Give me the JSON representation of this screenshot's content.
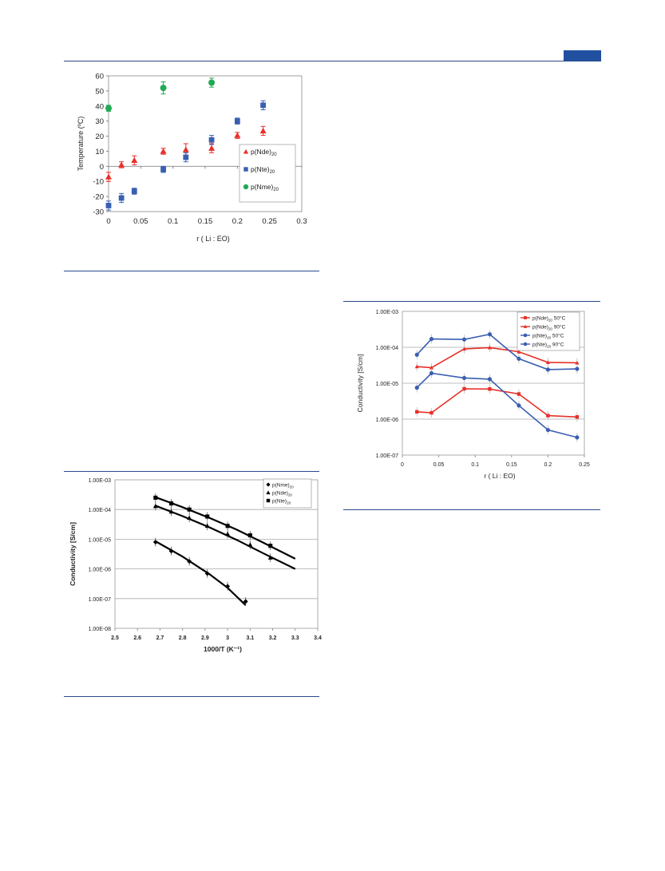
{
  "page": {
    "accent_color": "#2150a0",
    "rule_color": "#2a4a8c"
  },
  "figures": [
    {
      "chart_data": {
        "type": "scatter",
        "xlabel": "r ( Li : EO)",
        "ylabel": "Temperature (ºC)",
        "xlim": [
          0,
          0.3
        ],
        "ylim": [
          -30,
          60
        ],
        "x_ticks": [
          "0",
          "0.05",
          "0.1",
          "0.15",
          "0.2",
          "0.25",
          "0.3"
        ],
        "y_ticks": [
          "60",
          "50",
          "40",
          "30",
          "20",
          "10",
          "0",
          "-10",
          "-20",
          "-30"
        ],
        "grid": false,
        "legend_position": "right",
        "series": [
          {
            "name_main": "p(Nde)",
            "name_sub": "20",
            "marker": "triangle",
            "color": "#e8302a",
            "points": [
              [
                0,
                -7,
                3
              ],
              [
                0.02,
                1,
                2
              ],
              [
                0.04,
                4,
                3
              ],
              [
                0.085,
                10,
                2
              ],
              [
                0.12,
                11,
                4
              ],
              [
                0.16,
                12,
                3
              ],
              [
                0.2,
                20.5,
                2
              ],
              [
                0.24,
                23.5,
                3
              ]
            ]
          },
          {
            "name_main": "p(Nte)",
            "name_sub": "20",
            "marker": "square",
            "color": "#3a5fb0",
            "points": [
              [
                0,
                -26,
                3
              ],
              [
                0.02,
                -21,
                3
              ],
              [
                0.04,
                -16.5,
                2
              ],
              [
                0.085,
                -2,
                2
              ],
              [
                0.12,
                6,
                3
              ],
              [
                0.16,
                17.5,
                3
              ],
              [
                0.2,
                30,
                2
              ],
              [
                0.24,
                40.5,
                3
              ]
            ]
          },
          {
            "name_main": "p(Nme)",
            "name_sub": "20",
            "marker": "circle",
            "color": "#22aa55",
            "points": [
              [
                0,
                38.5,
                2
              ],
              [
                0.085,
                52,
                4
              ],
              [
                0.16,
                55.5,
                3
              ]
            ]
          }
        ]
      }
    },
    {
      "chart_data": {
        "type": "line",
        "xlabel": "r ( Li : EO)",
        "ylabel": "Conductivity [S/cm]",
        "xlim": [
          0,
          0.25
        ],
        "ylim_log10": [
          -7,
          -3
        ],
        "y_scale": "log",
        "x_ticks": [
          "0",
          "0.05",
          "0.1",
          "0.15",
          "0.2",
          "0.25"
        ],
        "y_ticks": [
          "1.00E-03",
          "1.00E-04",
          "1.00E-05",
          "1.00E-06",
          "1.00E-07"
        ],
        "grid": true,
        "legend_position": "top-right",
        "series": [
          {
            "name_main": "p(Nde)",
            "name_sub": "20",
            "name_tail": " 50°C",
            "marker": "square",
            "color": "#e8302a",
            "points": [
              [
                0.02,
                1.6e-06
              ],
              [
                0.04,
                1.5e-06
              ],
              [
                0.085,
                7e-06
              ],
              [
                0.12,
                6.9e-06
              ],
              [
                0.16,
                5e-06
              ],
              [
                0.2,
                1.25e-06
              ],
              [
                0.24,
                1.15e-06
              ]
            ]
          },
          {
            "name_main": "p(Nde)",
            "name_sub": "20",
            "name_tail": " 90°C",
            "marker": "triangle",
            "color": "#e8302a",
            "points": [
              [
                0.02,
                2.9e-05
              ],
              [
                0.04,
                2.7e-05
              ],
              [
                0.085,
                9e-05
              ],
              [
                0.12,
                9.8e-05
              ],
              [
                0.16,
                7.5e-05
              ],
              [
                0.2,
                3.8e-05
              ],
              [
                0.24,
                3.7e-05
              ]
            ]
          },
          {
            "name_main": "p(Nte)",
            "name_sub": "20",
            "name_tail": " 50°C",
            "marker": "circle",
            "color": "#3a5fb0",
            "points": [
              [
                0.02,
                7.5e-06
              ],
              [
                0.04,
                1.9e-05
              ],
              [
                0.085,
                1.4e-05
              ],
              [
                0.12,
                1.3e-05
              ],
              [
                0.16,
                2.4e-06
              ],
              [
                0.2,
                5e-07
              ],
              [
                0.24,
                3.1e-07
              ]
            ]
          },
          {
            "name_main": "p(Nte)",
            "name_sub": "20",
            "name_tail": " 90°C",
            "marker": "circle",
            "color": "#3a5fb0",
            "points": [
              [
                0.02,
                6.2e-05
              ],
              [
                0.04,
                0.00017
              ],
              [
                0.085,
                0.000165
              ],
              [
                0.12,
                0.00023
              ],
              [
                0.16,
                4.8e-05
              ],
              [
                0.2,
                2.4e-05
              ],
              [
                0.24,
                2.5e-05
              ]
            ]
          }
        ]
      }
    },
    {
      "chart_data": {
        "type": "scatter",
        "xlabel": "1000/T (K⁻¹)",
        "ylabel": "Conductivity [S/cm]",
        "xlim": [
          2.5,
          3.4
        ],
        "ylim_log10": [
          -8,
          -3
        ],
        "y_scale": "log",
        "x_ticks": [
          "2.5",
          "2.6",
          "2.7",
          "2.8",
          "2.9",
          "3",
          "3.1",
          "3.2",
          "3.3",
          "3.4"
        ],
        "y_ticks": [
          "1.00E-03",
          "1.00E-04",
          "1.00E-05",
          "1.00E-06",
          "1.00E-07",
          "1.00E-08"
        ],
        "grid": true,
        "legend_position": "top-right",
        "series": [
          {
            "name_main": "p(Nme)",
            "name_sub": "20",
            "marker": "diamond",
            "color": "#000000",
            "points": [
              [
                2.68,
                8e-06
              ],
              [
                2.75,
                4e-06
              ],
              [
                2.83,
                1.8e-06
              ],
              [
                2.91,
                7e-07
              ],
              [
                3.0,
                2.6e-07
              ],
              [
                3.08,
                8e-08
              ]
            ],
            "fit": [
              [
                2.68,
                8.5e-06
              ],
              [
                2.8,
                2.6e-06
              ],
              [
                2.92,
                6.6e-07
              ],
              [
                3.0,
                2.3e-07
              ],
              [
                3.08,
                6e-08
              ]
            ]
          },
          {
            "name_main": "p(Nde)",
            "name_sub": "20",
            "marker": "triangle",
            "color": "#000000",
            "points": [
              [
                2.68,
                0.00013
              ],
              [
                2.75,
                8.5e-05
              ],
              [
                2.83,
                5.2e-05
              ],
              [
                2.91,
                2.8e-05
              ],
              [
                3.0,
                1.5e-05
              ],
              [
                3.1,
                6.5e-06
              ],
              [
                3.19,
                2.4e-06
              ]
            ],
            "fit": [
              [
                2.68,
                0.000135
              ],
              [
                2.8,
                6e-05
              ],
              [
                2.92,
                2.5e-05
              ],
              [
                3.04,
                9.5e-06
              ],
              [
                3.16,
                3.3e-06
              ],
              [
                3.3,
                1e-06
              ]
            ]
          },
          {
            "name_main": "p(Nte)",
            "name_sub": "20",
            "marker": "square",
            "color": "#000000",
            "points": [
              [
                2.68,
                0.00025
              ],
              [
                2.75,
                0.00016
              ],
              [
                2.83,
                0.0001
              ],
              [
                2.91,
                5.8e-05
              ],
              [
                3.0,
                2.8e-05
              ],
              [
                3.1,
                1.35e-05
              ],
              [
                3.19,
                6e-06
              ]
            ],
            "fit": [
              [
                2.68,
                0.00026
              ],
              [
                2.8,
                0.00012
              ],
              [
                2.92,
                5.2e-05
              ],
              [
                3.04,
                2.1e-05
              ],
              [
                3.16,
                7.5e-06
              ],
              [
                3.3,
                2.2e-06
              ]
            ]
          }
        ]
      }
    }
  ]
}
